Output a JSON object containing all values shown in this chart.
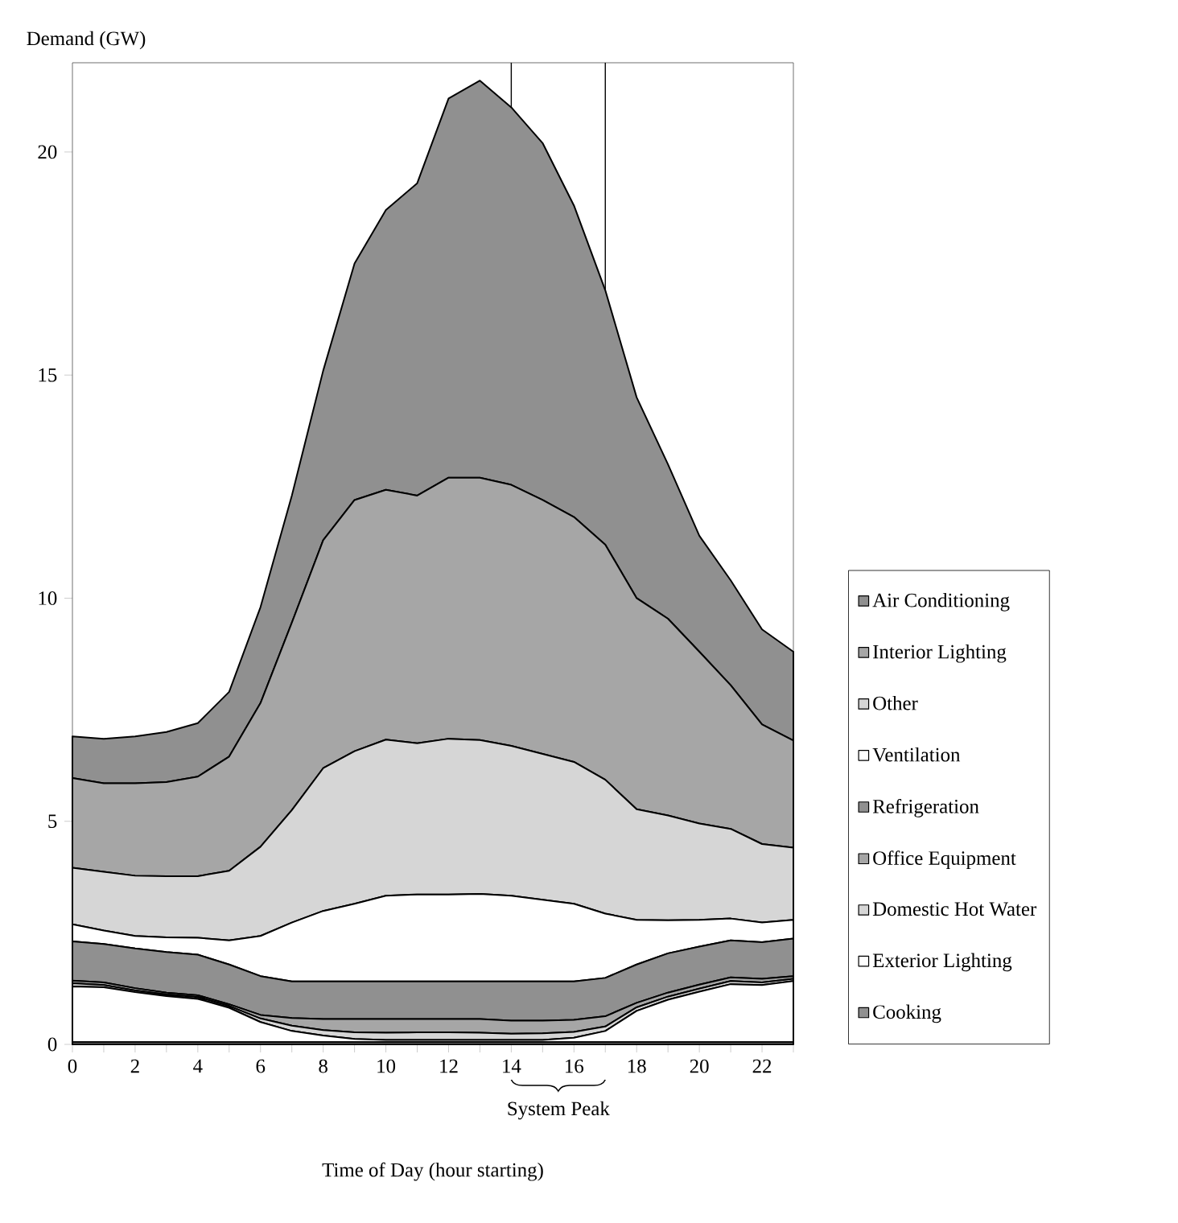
{
  "chart_data": {
    "type": "area",
    "stacked": true,
    "xlabel": "Time of Day (hour starting)",
    "ylabel": "Demand (GW)",
    "x": [
      0,
      1,
      2,
      3,
      4,
      5,
      6,
      7,
      8,
      9,
      10,
      11,
      12,
      13,
      14,
      15,
      16,
      17,
      18,
      19,
      20,
      21,
      22,
      23
    ],
    "xlim": [
      0,
      23
    ],
    "ylim": [
      0,
      22
    ],
    "xticks": [
      0,
      {
        "value": 1,
        "label": null
      },
      2,
      {
        "value": 3,
        "label": null
      },
      4,
      {
        "value": 5,
        "label": null
      },
      6,
      {
        "value": 7,
        "label": null
      },
      8,
      {
        "value": 9,
        "label": null
      },
      10,
      {
        "value": 11,
        "label": null
      },
      12,
      {
        "value": 13,
        "label": null
      },
      14,
      {
        "value": 15,
        "label": null
      },
      16,
      {
        "value": 17,
        "label": null
      },
      18,
      {
        "value": 19,
        "label": null
      },
      20,
      {
        "value": 21,
        "label": null
      },
      22,
      {
        "value": 23,
        "label": null
      }
    ],
    "yticks": [
      0,
      5,
      10,
      15,
      20
    ],
    "legend": "right",
    "series": [
      {
        "name": "Cooking",
        "color": "#909090",
        "values": [
          0.05,
          0.05,
          0.05,
          0.05,
          0.05,
          0.05,
          0.05,
          0.05,
          0.05,
          0.05,
          0.05,
          0.05,
          0.05,
          0.05,
          0.05,
          0.05,
          0.05,
          0.05,
          0.05,
          0.05,
          0.05,
          0.05,
          0.05,
          0.05
        ]
      },
      {
        "name": "Exterior Lighting",
        "color": "#ffffff",
        "values": [
          1.25,
          1.23,
          1.12,
          1.03,
          0.97,
          0.77,
          0.45,
          0.25,
          0.15,
          0.07,
          0.05,
          0.05,
          0.05,
          0.05,
          0.05,
          0.05,
          0.1,
          0.25,
          0.7,
          0.95,
          1.13,
          1.3,
          1.28,
          1.37
        ]
      },
      {
        "name": "Domestic Hot Water",
        "color": "#d6d6d6",
        "values": [
          0.07,
          0.05,
          0.04,
          0.04,
          0.04,
          0.04,
          0.08,
          0.12,
          0.12,
          0.15,
          0.16,
          0.17,
          0.17,
          0.16,
          0.14,
          0.15,
          0.13,
          0.1,
          0.08,
          0.07,
          0.07,
          0.07,
          0.06,
          0.05
        ]
      },
      {
        "name": "Office Equipment",
        "color": "#a6a6a6",
        "values": [
          0.06,
          0.06,
          0.05,
          0.04,
          0.04,
          0.04,
          0.08,
          0.17,
          0.25,
          0.3,
          0.31,
          0.3,
          0.3,
          0.31,
          0.29,
          0.28,
          0.27,
          0.23,
          0.1,
          0.09,
          0.09,
          0.08,
          0.08,
          0.06
        ]
      },
      {
        "name": "Refrigeration",
        "color": "#909090",
        "values": [
          0.88,
          0.86,
          0.89,
          0.91,
          0.91,
          0.89,
          0.87,
          0.82,
          0.84,
          0.84,
          0.84,
          0.84,
          0.84,
          0.84,
          0.88,
          0.88,
          0.86,
          0.86,
          0.86,
          0.88,
          0.85,
          0.83,
          0.82,
          0.84
        ]
      },
      {
        "name": "Ventilation",
        "color": "#ffffff",
        "values": [
          0.38,
          0.3,
          0.28,
          0.33,
          0.38,
          0.54,
          0.9,
          1.32,
          1.58,
          1.74,
          1.92,
          1.95,
          1.95,
          1.96,
          1.92,
          1.83,
          1.74,
          1.44,
          1.0,
          0.74,
          0.6,
          0.49,
          0.44,
          0.42
        ]
      },
      {
        "name": "Other",
        "color": "#d6d6d6",
        "values": [
          1.27,
          1.32,
          1.35,
          1.37,
          1.38,
          1.56,
          2.0,
          2.52,
          3.2,
          3.42,
          3.5,
          3.39,
          3.49,
          3.45,
          3.36,
          3.27,
          3.18,
          3.0,
          2.48,
          2.35,
          2.16,
          2.01,
          1.76,
          1.62
        ]
      },
      {
        "name": "Interior Lighting",
        "color": "#a6a6a6",
        "values": [
          2.01,
          1.98,
          2.07,
          2.11,
          2.23,
          2.56,
          3.22,
          4.2,
          5.11,
          5.63,
          5.6,
          5.55,
          5.85,
          5.88,
          5.85,
          5.69,
          5.49,
          5.27,
          4.73,
          4.41,
          3.85,
          3.22,
          2.68,
          2.4
        ]
      },
      {
        "name": "Air Conditioning",
        "color": "#909090",
        "values": [
          0.93,
          1.0,
          1.05,
          1.12,
          1.2,
          1.45,
          2.15,
          2.85,
          3.8,
          5.3,
          6.27,
          7.0,
          8.5,
          8.9,
          8.46,
          8.0,
          6.98,
          5.7,
          4.5,
          3.46,
          2.6,
          2.35,
          2.13,
          1.99
        ]
      }
    ],
    "ref_lines": [
      {
        "axis": "x",
        "value": 14
      },
      {
        "axis": "x",
        "value": 17
      }
    ],
    "annotations": [
      "System Peak"
    ]
  }
}
